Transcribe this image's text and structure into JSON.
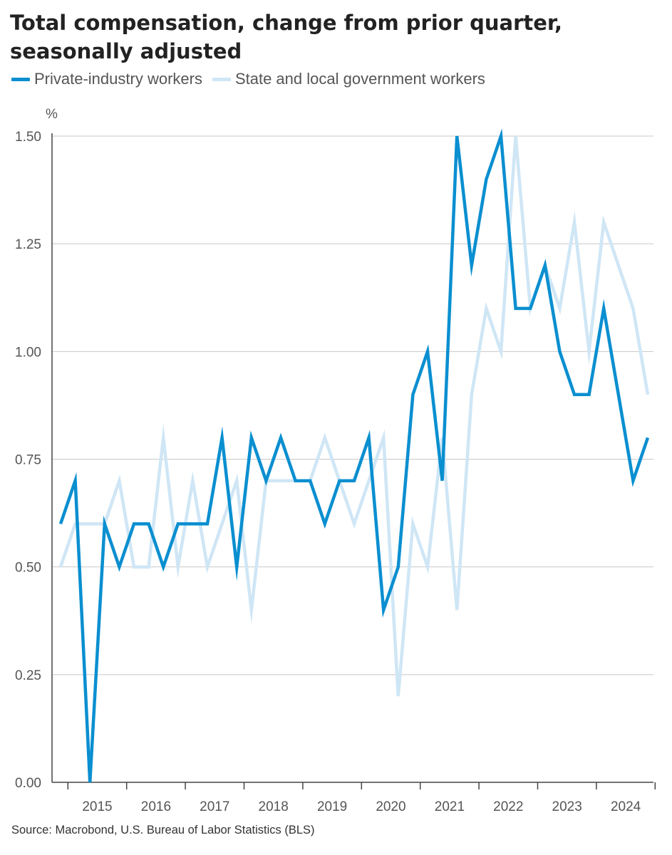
{
  "chart_data": {
    "type": "line",
    "title": "Total compensation, change from prior quarter, seasonally adjusted",
    "unit": "%",
    "source": "Source: Macrobond, U.S. Bureau of Labor Statistics (BLS)",
    "ylim": [
      0,
      1.5
    ],
    "yticks": [
      "0.00",
      "0.25",
      "0.50",
      "0.75",
      "1.00",
      "1.25",
      "1.50"
    ],
    "year_labels": [
      "2015",
      "2016",
      "2017",
      "2018",
      "2019",
      "2020",
      "2021",
      "2022",
      "2023",
      "2024"
    ],
    "x_start_quarter": "2014 Q4",
    "grid": true,
    "legend_position": "top-left",
    "series": [
      {
        "name": "Private-industry workers",
        "color": "#0a8fd0",
        "values": [
          0.6,
          0.7,
          0.0,
          0.6,
          0.5,
          0.6,
          0.6,
          0.5,
          0.6,
          0.6,
          0.6,
          0.8,
          0.5,
          0.8,
          0.7,
          0.8,
          0.7,
          0.7,
          0.6,
          0.7,
          0.7,
          0.8,
          0.4,
          0.5,
          0.9,
          1.0,
          0.7,
          1.5,
          1.2,
          1.4,
          1.5,
          1.1,
          1.1,
          1.2,
          1.0,
          0.9,
          0.9,
          1.1,
          0.9,
          0.7,
          0.8
        ]
      },
      {
        "name": "State and local government workers",
        "color": "#cfe6f5",
        "values": [
          0.5,
          0.6,
          0.6,
          0.6,
          0.7,
          0.5,
          0.5,
          0.8,
          0.5,
          0.7,
          0.5,
          0.6,
          0.7,
          0.4,
          0.7,
          0.7,
          0.7,
          0.7,
          0.8,
          0.7,
          0.6,
          0.7,
          0.8,
          0.2,
          0.6,
          0.5,
          0.8,
          0.4,
          0.9,
          1.1,
          1.0,
          1.5,
          1.1,
          1.2,
          1.1,
          1.3,
          1.0,
          1.3,
          1.2,
          1.1,
          0.9
        ]
      }
    ]
  }
}
